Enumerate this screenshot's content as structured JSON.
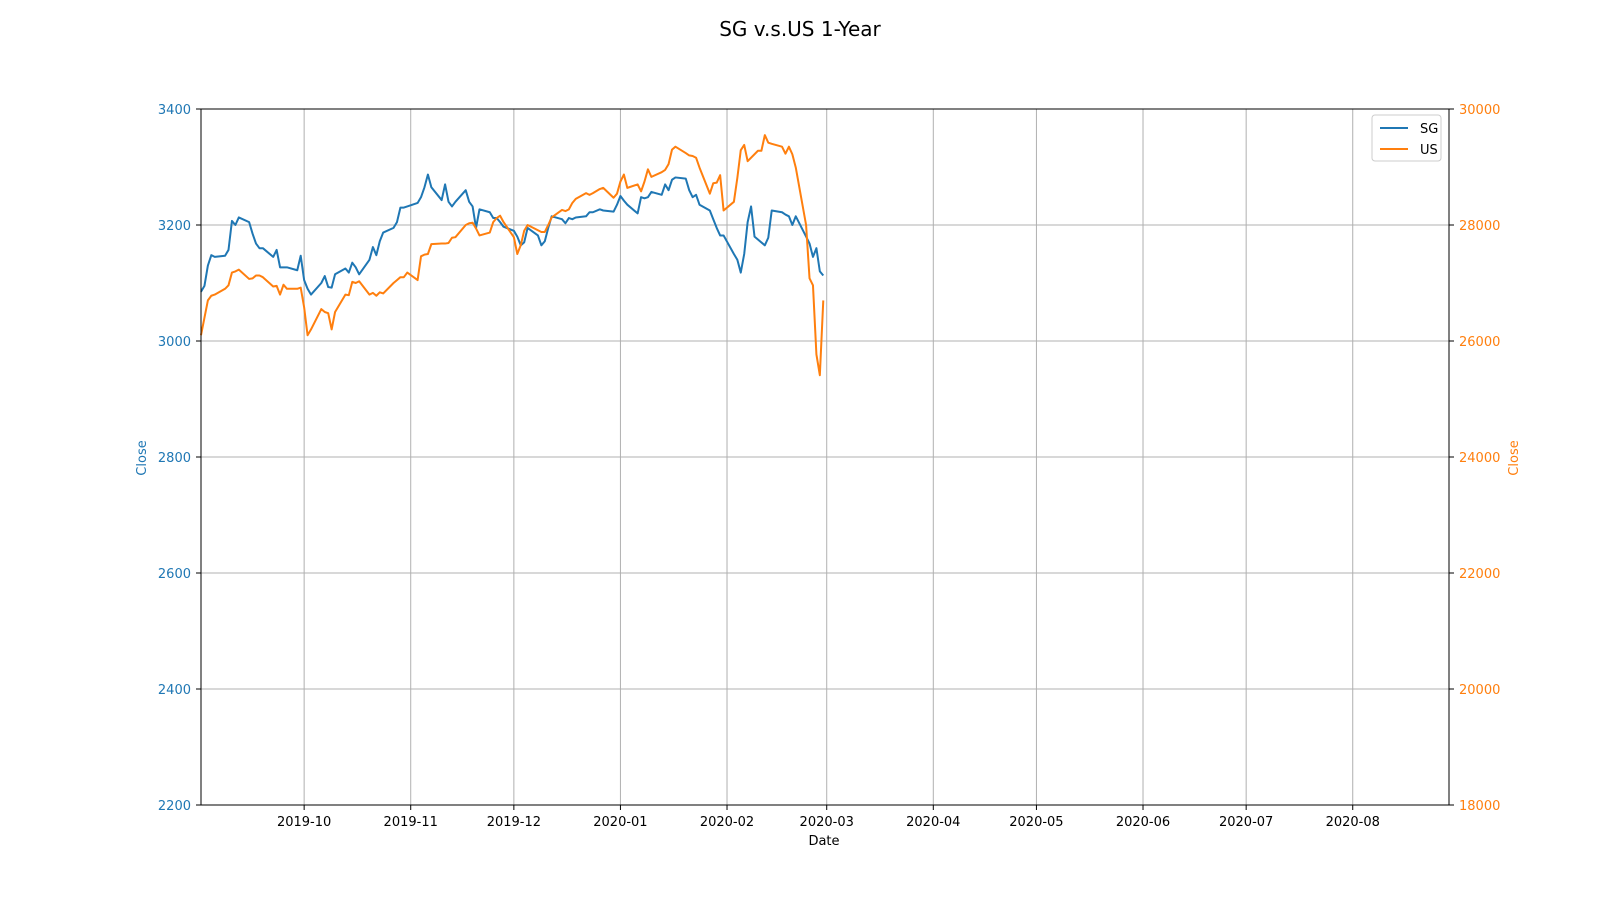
{
  "chart_data": {
    "type": "line",
    "title": "SG v.s.US 1-Year",
    "xlabel": "Date",
    "ylabel_left": "Close",
    "ylabel_right": "Close",
    "x_ticks": [
      "2019-10",
      "2019-11",
      "2019-12",
      "2020-01",
      "2020-02",
      "2020-03",
      "2020-04",
      "2020-05",
      "2020-06",
      "2020-07",
      "2020-08"
    ],
    "xlim": [
      "2019-09-01",
      "2020-08-29"
    ],
    "y_left": {
      "lim": [
        2200,
        3400
      ],
      "ticks": [
        2200,
        2400,
        2600,
        2800,
        3000,
        3200,
        3400
      ]
    },
    "y_right": {
      "lim": [
        18000,
        30000
      ],
      "ticks": [
        18000,
        20000,
        22000,
        24000,
        26000,
        28000,
        30000
      ]
    },
    "grid": true,
    "legend_position": "top-right",
    "colors": {
      "SG": "#1f77b4",
      "US": "#ff7f0e"
    },
    "series": [
      {
        "name": "SG",
        "axis": "left",
        "color": "#1f77b4",
        "points": [
          [
            "2019-09-01",
            3085
          ],
          [
            "2019-09-02",
            3095
          ],
          [
            "2019-09-03",
            3130
          ],
          [
            "2019-09-04",
            3148
          ],
          [
            "2019-09-05",
            3145
          ],
          [
            "2019-09-08",
            3147
          ],
          [
            "2019-09-09",
            3157
          ],
          [
            "2019-09-10",
            3207
          ],
          [
            "2019-09-11",
            3200
          ],
          [
            "2019-09-12",
            3213
          ],
          [
            "2019-09-15",
            3205
          ],
          [
            "2019-09-16",
            3185
          ],
          [
            "2019-09-17",
            3168
          ],
          [
            "2019-09-18",
            3160
          ],
          [
            "2019-09-19",
            3160
          ],
          [
            "2019-09-22",
            3145
          ],
          [
            "2019-09-23",
            3157
          ],
          [
            "2019-09-24",
            3127
          ],
          [
            "2019-09-25",
            3127
          ],
          [
            "2019-09-26",
            3127
          ],
          [
            "2019-09-29",
            3122
          ],
          [
            "2019-09-30",
            3147
          ],
          [
            "2019-10-01",
            3105
          ],
          [
            "2019-10-02",
            3090
          ],
          [
            "2019-10-03",
            3080
          ],
          [
            "2019-10-06",
            3100
          ],
          [
            "2019-10-07",
            3112
          ],
          [
            "2019-10-08",
            3093
          ],
          [
            "2019-10-09",
            3092
          ],
          [
            "2019-10-10",
            3115
          ],
          [
            "2019-10-13",
            3125
          ],
          [
            "2019-10-14",
            3118
          ],
          [
            "2019-10-15",
            3135
          ],
          [
            "2019-10-16",
            3127
          ],
          [
            "2019-10-17",
            3115
          ],
          [
            "2019-10-20",
            3140
          ],
          [
            "2019-10-21",
            3162
          ],
          [
            "2019-10-22",
            3148
          ],
          [
            "2019-10-23",
            3172
          ],
          [
            "2019-10-24",
            3187
          ],
          [
            "2019-10-27",
            3195
          ],
          [
            "2019-10-28",
            3205
          ],
          [
            "2019-10-29",
            3230
          ],
          [
            "2019-10-30",
            3230
          ],
          [
            "2019-10-31",
            3232
          ],
          [
            "2019-11-03",
            3238
          ],
          [
            "2019-11-04",
            3248
          ],
          [
            "2019-11-05",
            3265
          ],
          [
            "2019-11-06",
            3287
          ],
          [
            "2019-11-07",
            3265
          ],
          [
            "2019-11-10",
            3243
          ],
          [
            "2019-11-11",
            3270
          ],
          [
            "2019-11-12",
            3240
          ],
          [
            "2019-11-13",
            3232
          ],
          [
            "2019-11-14",
            3240
          ],
          [
            "2019-11-17",
            3260
          ],
          [
            "2019-11-18",
            3240
          ],
          [
            "2019-11-19",
            3232
          ],
          [
            "2019-11-20",
            3195
          ],
          [
            "2019-11-21",
            3227
          ],
          [
            "2019-11-24",
            3222
          ],
          [
            "2019-11-25",
            3212
          ],
          [
            "2019-11-26",
            3212
          ],
          [
            "2019-11-27",
            3205
          ],
          [
            "2019-11-28",
            3197
          ],
          [
            "2019-12-01",
            3190
          ],
          [
            "2019-12-02",
            3180
          ],
          [
            "2019-12-03",
            3165
          ],
          [
            "2019-12-04",
            3170
          ],
          [
            "2019-12-05",
            3195
          ],
          [
            "2019-12-08",
            3182
          ],
          [
            "2019-12-09",
            3165
          ],
          [
            "2019-12-10",
            3172
          ],
          [
            "2019-12-11",
            3195
          ],
          [
            "2019-12-12",
            3215
          ],
          [
            "2019-12-15",
            3210
          ],
          [
            "2019-12-16",
            3203
          ],
          [
            "2019-12-17",
            3212
          ],
          [
            "2019-12-18",
            3210
          ],
          [
            "2019-12-19",
            3213
          ],
          [
            "2019-12-22",
            3215
          ],
          [
            "2019-12-23",
            3222
          ],
          [
            "2019-12-24",
            3222
          ],
          [
            "2019-12-26",
            3227
          ],
          [
            "2019-12-27",
            3225
          ],
          [
            "2019-12-30",
            3223
          ],
          [
            "2019-12-31",
            3235
          ],
          [
            "2020-01-01",
            3250
          ],
          [
            "2020-01-02",
            3242
          ],
          [
            "2020-01-03",
            3235
          ],
          [
            "2020-01-06",
            3220
          ],
          [
            "2020-01-07",
            3248
          ],
          [
            "2020-01-08",
            3246
          ],
          [
            "2020-01-09",
            3248
          ],
          [
            "2020-01-10",
            3257
          ],
          [
            "2020-01-13",
            3252
          ],
          [
            "2020-01-14",
            3270
          ],
          [
            "2020-01-15",
            3260
          ],
          [
            "2020-01-16",
            3278
          ],
          [
            "2020-01-17",
            3282
          ],
          [
            "2020-01-20",
            3280
          ],
          [
            "2020-01-21",
            3260
          ],
          [
            "2020-01-22",
            3248
          ],
          [
            "2020-01-23",
            3252
          ],
          [
            "2020-01-24",
            3235
          ],
          [
            "2020-01-27",
            3225
          ],
          [
            "2020-01-28",
            3210
          ],
          [
            "2020-01-29",
            3195
          ],
          [
            "2020-01-30",
            3182
          ],
          [
            "2020-01-31",
            3182
          ],
          [
            "2020-02-03",
            3150
          ],
          [
            "2020-02-04",
            3140
          ],
          [
            "2020-02-05",
            3118
          ],
          [
            "2020-02-06",
            3150
          ],
          [
            "2020-02-07",
            3205
          ],
          [
            "2020-02-08",
            3232
          ],
          [
            "2020-02-09",
            3180
          ],
          [
            "2020-02-12",
            3165
          ],
          [
            "2020-02-13",
            3178
          ],
          [
            "2020-02-14",
            3225
          ],
          [
            "2020-02-17",
            3222
          ],
          [
            "2020-02-18",
            3218
          ],
          [
            "2020-02-19",
            3215
          ],
          [
            "2020-02-20",
            3200
          ],
          [
            "2020-02-21",
            3215
          ],
          [
            "2020-02-24",
            3180
          ],
          [
            "2020-02-25",
            3168
          ],
          [
            "2020-02-26",
            3145
          ],
          [
            "2020-02-27",
            3160
          ],
          [
            "2020-02-28",
            3120
          ],
          [
            "2020-02-29",
            3113
          ]
        ]
      },
      {
        "name": "US",
        "axis": "right",
        "color": "#ff7f0e",
        "points": [
          [
            "2019-09-01",
            26100
          ],
          [
            "2019-09-02",
            26400
          ],
          [
            "2019-09-03",
            26700
          ],
          [
            "2019-09-04",
            26780
          ],
          [
            "2019-09-05",
            26800
          ],
          [
            "2019-09-08",
            26900
          ],
          [
            "2019-09-09",
            26960
          ],
          [
            "2019-09-10",
            27180
          ],
          [
            "2019-09-11",
            27200
          ],
          [
            "2019-09-12",
            27230
          ],
          [
            "2019-09-15",
            27070
          ],
          [
            "2019-09-16",
            27080
          ],
          [
            "2019-09-17",
            27130
          ],
          [
            "2019-09-18",
            27130
          ],
          [
            "2019-09-19",
            27100
          ],
          [
            "2019-09-22",
            26940
          ],
          [
            "2019-09-23",
            26950
          ],
          [
            "2019-09-24",
            26800
          ],
          [
            "2019-09-25",
            26970
          ],
          [
            "2019-09-26",
            26900
          ],
          [
            "2019-09-29",
            26900
          ],
          [
            "2019-09-30",
            26920
          ],
          [
            "2019-10-01",
            26580
          ],
          [
            "2019-10-02",
            26100
          ],
          [
            "2019-10-03",
            26200
          ],
          [
            "2019-10-06",
            26550
          ],
          [
            "2019-10-07",
            26500
          ],
          [
            "2019-10-08",
            26480
          ],
          [
            "2019-10-09",
            26200
          ],
          [
            "2019-10-10",
            26500
          ],
          [
            "2019-10-13",
            26800
          ],
          [
            "2019-10-14",
            26790
          ],
          [
            "2019-10-15",
            27020
          ],
          [
            "2019-10-16",
            27000
          ],
          [
            "2019-10-17",
            27030
          ],
          [
            "2019-10-20",
            26800
          ],
          [
            "2019-10-21",
            26830
          ],
          [
            "2019-10-22",
            26780
          ],
          [
            "2019-10-23",
            26840
          ],
          [
            "2019-10-24",
            26820
          ],
          [
            "2019-10-27",
            27000
          ],
          [
            "2019-10-28",
            27050
          ],
          [
            "2019-10-29",
            27100
          ],
          [
            "2019-10-30",
            27100
          ],
          [
            "2019-10-31",
            27180
          ],
          [
            "2019-11-03",
            27050
          ],
          [
            "2019-11-04",
            27460
          ],
          [
            "2019-11-05",
            27490
          ],
          [
            "2019-11-06",
            27500
          ],
          [
            "2019-11-07",
            27670
          ],
          [
            "2019-11-10",
            27680
          ],
          [
            "2019-11-11",
            27680
          ],
          [
            "2019-11-12",
            27690
          ],
          [
            "2019-11-13",
            27780
          ],
          [
            "2019-11-14",
            27790
          ],
          [
            "2019-11-17",
            28000
          ],
          [
            "2019-11-18",
            28030
          ],
          [
            "2019-11-19",
            28040
          ],
          [
            "2019-11-20",
            27940
          ],
          [
            "2019-11-21",
            27820
          ],
          [
            "2019-11-24",
            27870
          ],
          [
            "2019-11-25",
            28050
          ],
          [
            "2019-11-26",
            28120
          ],
          [
            "2019-11-27",
            28160
          ],
          [
            "2019-11-28",
            28050
          ],
          [
            "2019-12-01",
            27790
          ],
          [
            "2019-12-02",
            27500
          ],
          [
            "2019-12-03",
            27650
          ],
          [
            "2019-12-04",
            27900
          ],
          [
            "2019-12-05",
            28000
          ],
          [
            "2019-12-08",
            27910
          ],
          [
            "2019-12-09",
            27880
          ],
          [
            "2019-12-10",
            27880
          ],
          [
            "2019-12-11",
            28000
          ],
          [
            "2019-12-12",
            28130
          ],
          [
            "2019-12-15",
            28260
          ],
          [
            "2019-12-16",
            28240
          ],
          [
            "2019-12-17",
            28270
          ],
          [
            "2019-12-18",
            28380
          ],
          [
            "2019-12-19",
            28450
          ],
          [
            "2019-12-22",
            28550
          ],
          [
            "2019-12-23",
            28520
          ],
          [
            "2019-12-24",
            28550
          ],
          [
            "2019-12-26",
            28620
          ],
          [
            "2019-12-27",
            28640
          ],
          [
            "2019-12-30",
            28470
          ],
          [
            "2019-12-31",
            28540
          ],
          [
            "2020-01-01",
            28750
          ],
          [
            "2020-01-02",
            28870
          ],
          [
            "2020-01-03",
            28640
          ],
          [
            "2020-01-06",
            28700
          ],
          [
            "2020-01-07",
            28580
          ],
          [
            "2020-01-08",
            28750
          ],
          [
            "2020-01-09",
            28960
          ],
          [
            "2020-01-10",
            28830
          ],
          [
            "2020-01-13",
            28910
          ],
          [
            "2020-01-14",
            28950
          ],
          [
            "2020-01-15",
            29050
          ],
          [
            "2020-01-16",
            29300
          ],
          [
            "2020-01-17",
            29350
          ],
          [
            "2020-01-20",
            29240
          ],
          [
            "2020-01-21",
            29200
          ],
          [
            "2020-01-22",
            29190
          ],
          [
            "2020-01-23",
            29160
          ],
          [
            "2020-01-24",
            28990
          ],
          [
            "2020-01-27",
            28540
          ],
          [
            "2020-01-28",
            28720
          ],
          [
            "2020-01-29",
            28730
          ],
          [
            "2020-01-30",
            28860
          ],
          [
            "2020-01-31",
            28250
          ],
          [
            "2020-02-03",
            28400
          ],
          [
            "2020-02-04",
            28810
          ],
          [
            "2020-02-05",
            29290
          ],
          [
            "2020-02-06",
            29380
          ],
          [
            "2020-02-07",
            29100
          ],
          [
            "2020-02-10",
            29280
          ],
          [
            "2020-02-11",
            29280
          ],
          [
            "2020-02-12",
            29550
          ],
          [
            "2020-02-13",
            29420
          ],
          [
            "2020-02-14",
            29400
          ],
          [
            "2020-02-17",
            29350
          ],
          [
            "2020-02-18",
            29230
          ],
          [
            "2020-02-19",
            29350
          ],
          [
            "2020-02-20",
            29220
          ],
          [
            "2020-02-21",
            28990
          ],
          [
            "2020-02-24",
            28000
          ],
          [
            "2020-02-25",
            27080
          ],
          [
            "2020-02-26",
            26960
          ],
          [
            "2020-02-27",
            25770
          ],
          [
            "2020-02-28",
            25410
          ],
          [
            "2020-02-29",
            26700
          ]
        ]
      }
    ]
  }
}
